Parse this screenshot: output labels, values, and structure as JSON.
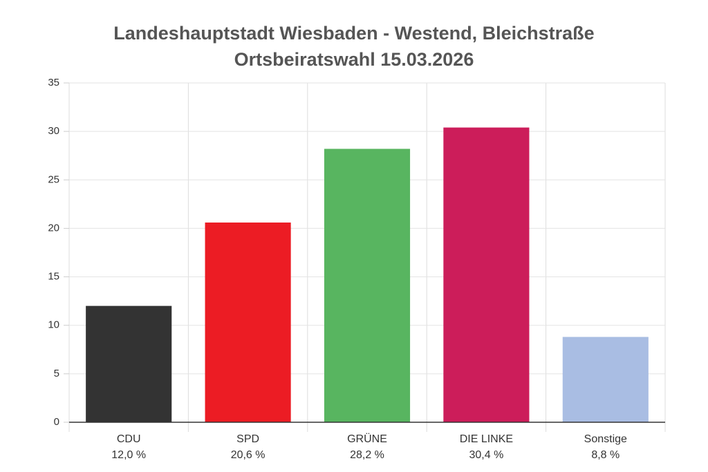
{
  "chart_data": {
    "type": "bar",
    "title": [
      "Landeshauptstadt Wiesbaden - Westend, Bleichstraße",
      "Ortsbeiratswahl 15.03.2026"
    ],
    "categories": [
      "CDU",
      "SPD",
      "GRÜNE",
      "DIE LINKE",
      "Sonstige"
    ],
    "values": [
      12.0,
      20.6,
      28.2,
      30.4,
      8.8
    ],
    "value_labels": [
      "12,0 %",
      "20,6 %",
      "28,2 %",
      "30,4 %",
      "8,8 %"
    ],
    "colors": [
      "#333333",
      "#ec1c24",
      "#58b560",
      "#cc1d5a",
      "#a9bde3"
    ],
    "ylim": [
      0,
      35
    ],
    "yticks": [
      0,
      5,
      10,
      15,
      20,
      25,
      30,
      35
    ],
    "grid": true
  }
}
